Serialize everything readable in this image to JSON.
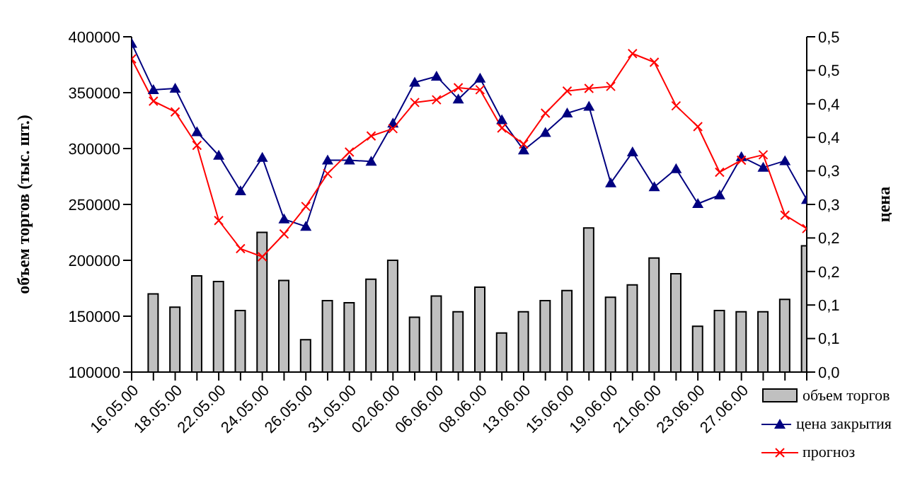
{
  "chart_data": {
    "type": "bar",
    "categories": [
      "16.05.00",
      null,
      "18.05.00",
      null,
      "22.05.00",
      null,
      "24.05.00",
      null,
      "26.05.00",
      null,
      "31.05.00",
      null,
      "02.06.00",
      null,
      "06.06.00",
      null,
      "08.06.00",
      null,
      "13.06.00",
      null,
      "15.06.00",
      null,
      "19.06.00",
      null,
      "21.06.00",
      null,
      "23.06.00",
      null,
      "27.06.00",
      null,
      null,
      null
    ],
    "ylabel": "объем торгов (тыс. шт.)",
    "y2label": "цена",
    "ylim": [
      100000,
      400000
    ],
    "yticks": [
      100000,
      150000,
      200000,
      250000,
      300000,
      350000,
      400000
    ],
    "y2lim": [
      0,
      0.5
    ],
    "y2ticks": [
      {
        "value": 0,
        "label": "0,0"
      },
      {
        "value": 0.05,
        "label": "0,1"
      },
      {
        "value": 0.1,
        "label": "0,1"
      },
      {
        "value": 0.15,
        "label": "0,2"
      },
      {
        "value": 0.2,
        "label": "0,2"
      },
      {
        "value": 0.25,
        "label": "0,3"
      },
      {
        "value": 0.3,
        "label": "0,3"
      },
      {
        "value": 0.35,
        "label": "0,4"
      },
      {
        "value": 0.4,
        "label": "0,4"
      },
      {
        "value": 0.45,
        "label": "0,5"
      },
      {
        "value": 0.5,
        "label": "0,5"
      }
    ],
    "legend": "bottom right",
    "grid": false,
    "series": [
      {
        "name": "объем торгов",
        "color": "#c0c0c0",
        "values": [
          null,
          170000,
          158000,
          186000,
          181000,
          155000,
          225000,
          182000,
          129000,
          164000,
          162000,
          183000,
          200000,
          149000,
          168000,
          154000,
          176000,
          135000,
          154000,
          164000,
          173000,
          229000,
          167000,
          178000,
          202000,
          188000,
          141000,
          155000,
          154000,
          154000,
          165000,
          213000
        ]
      },
      {
        "name": "цена закрытия",
        "type": "line",
        "axis": "y2",
        "color": "#000080",
        "marker": "triangle",
        "values": [
          0.49,
          0.421,
          0.423,
          0.358,
          0.323,
          0.27,
          0.32,
          0.228,
          0.217,
          0.316,
          0.316,
          0.314,
          0.371,
          0.432,
          0.441,
          0.407,
          0.438,
          0.376,
          0.331,
          0.357,
          0.386,
          0.396,
          0.282,
          0.328,
          0.276,
          0.303,
          0.251,
          0.264,
          0.321,
          0.305,
          0.315,
          0.257
        ]
      },
      {
        "name": "прогноз",
        "type": "line",
        "axis": "y2",
        "color": "#ff0000",
        "marker": "cross",
        "values": [
          0.467,
          0.404,
          0.388,
          0.338,
          0.226,
          0.184,
          0.172,
          0.206,
          0.247,
          0.296,
          0.328,
          0.352,
          0.363,
          0.402,
          0.406,
          0.424,
          0.421,
          0.364,
          0.34,
          0.386,
          0.419,
          0.423,
          0.426,
          0.475,
          0.462,
          0.397,
          0.366,
          0.298,
          0.316,
          0.324,
          0.234,
          0.214
        ]
      }
    ]
  }
}
